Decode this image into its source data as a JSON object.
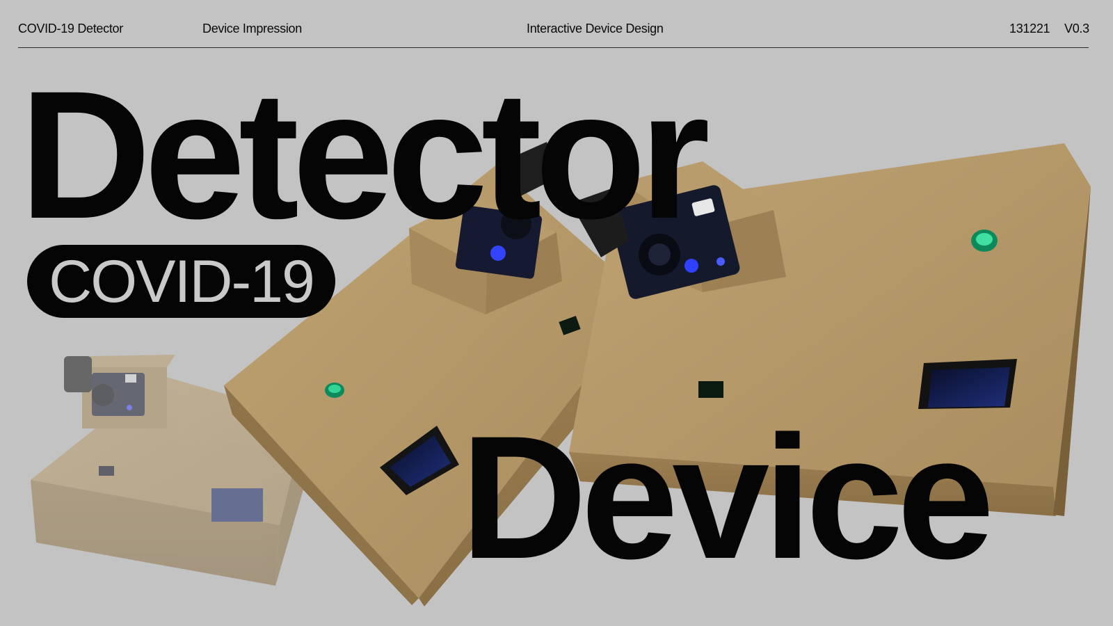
{
  "header": {
    "project": "COVID-19 Detector",
    "section": "Device Impression",
    "course": "Interactive Device Design",
    "date": "131221",
    "version": "V0.3"
  },
  "headline": {
    "line1": "Detector",
    "badge": "COVID-19",
    "line2": "Device"
  },
  "colors": {
    "background": "#c3c3c3",
    "text": "#050505",
    "badge_bg": "#050505",
    "badge_text": "#c9c9c9",
    "cardboard": "#b79a6a",
    "led": "#1fb87a"
  }
}
